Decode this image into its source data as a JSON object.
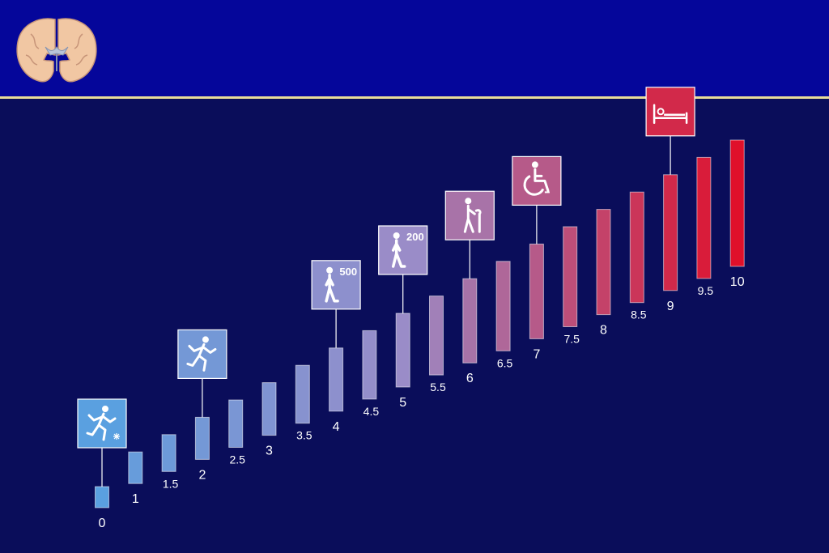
{
  "chart_data": {
    "type": "bar",
    "categories": [
      "0",
      "1",
      "1.5",
      "2",
      "2.5",
      "3",
      "3.5",
      "4",
      "4.5",
      "5",
      "5.5",
      "6",
      "6.5",
      "7",
      "7.5",
      "8",
      "8.5",
      "9",
      "9.5",
      "10"
    ],
    "values": [
      0,
      1,
      1.5,
      2,
      2.5,
      3,
      3.5,
      4,
      4.5,
      5,
      5.5,
      6,
      6.5,
      7,
      7.5,
      8,
      8.5,
      9,
      9.5,
      10
    ],
    "color_low": "#5aa0e0",
    "color_mid": "#9a8cc8",
    "color_high": "#e0102a"
  },
  "icons": [
    {
      "step": "0",
      "icon": "running-figure-icon",
      "caption": ""
    },
    {
      "step": "2",
      "icon": "running-figure-icon",
      "caption": ""
    },
    {
      "step": "4",
      "icon": "walking-figure-icon",
      "caption": "500"
    },
    {
      "step": "5",
      "icon": "walking-figure-icon",
      "caption": "200"
    },
    {
      "step": "6",
      "icon": "walking-cane-icon",
      "caption": ""
    },
    {
      "step": "7",
      "icon": "wheelchair-icon",
      "caption": ""
    },
    {
      "step": "9",
      "icon": "bed-icon",
      "caption": ""
    }
  ],
  "colors": {
    "background": "#0a0d5a",
    "header": "#05069a",
    "header_rule": "#e8dc9a"
  }
}
